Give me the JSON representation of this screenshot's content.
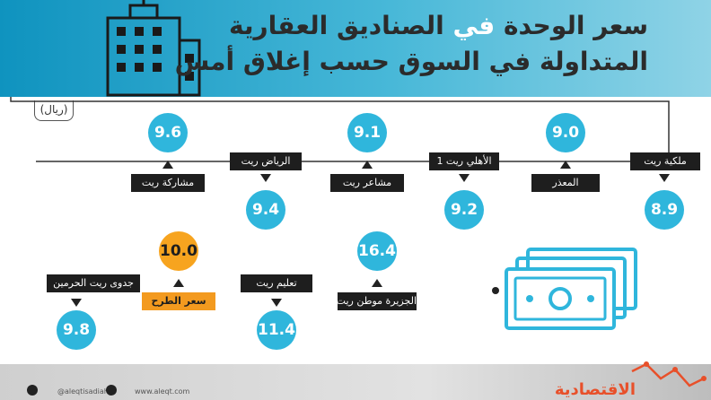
{
  "header": {
    "title_prefix": "سعر الوحدة",
    "title_middle": " في ",
    "title_suffix": "الصناديق العقارية",
    "subtitle": "المتداولة في السوق حسب إغلاق أمس"
  },
  "unit": "(ريال)",
  "funds": [
    {
      "name": "ملكية ريت",
      "value": "8.9"
    },
    {
      "name": "المعذر",
      "value": "9.0"
    },
    {
      "name": "الأهلي ريت 1",
      "value": "9.2"
    },
    {
      "name": "مشاعر ريت",
      "value": "9.1"
    },
    {
      "name": "الرياض ريت",
      "value": "9.4"
    },
    {
      "name": "مشاركة ريت",
      "value": "9.6"
    },
    {
      "name": "جدوى ريت الحرمين",
      "value": "9.8"
    },
    {
      "name": "سعر الطرح",
      "value": "10.0"
    },
    {
      "name": "تعليم ريت",
      "value": "11.4"
    },
    {
      "name": "الجزيرة موطن ريت",
      "value": "16.4"
    }
  ],
  "footer": {
    "brand": "الاقتصادية",
    "handle": "@aleqtisadiah",
    "website": "www.aleqt.com"
  },
  "colors": {
    "accent_blue": "#2fb6dc",
    "accent_orange": "#f7a41f",
    "header_blue": "#0f93bf"
  },
  "icons": [
    "building-icon",
    "money-icon",
    "twitter-icon",
    "instagram-icon",
    "trend-line-icon"
  ]
}
